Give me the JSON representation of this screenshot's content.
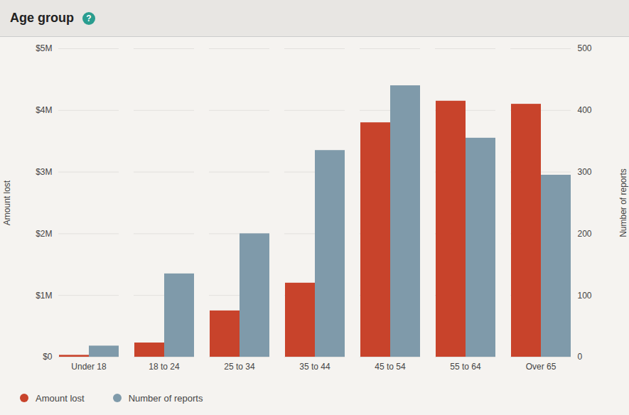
{
  "chart_data": {
    "type": "bar",
    "title": "Age group",
    "annotations": [
      "?"
    ],
    "categories": [
      "Under 18",
      "18 to 24",
      "25 to 34",
      "35 to 44",
      "45 to 54",
      "55 to 64",
      "Over 65"
    ],
    "series": [
      {
        "name": "Amount lost",
        "color": "#c8432b",
        "values": [
          30000,
          230000,
          750000,
          1200000,
          3800000,
          4150000,
          4100000
        ]
      },
      {
        "name": "Number of reports",
        "color": "#7f9aaa",
        "axis": "y2",
        "values": [
          18,
          135,
          200,
          335,
          440,
          355,
          295
        ]
      }
    ],
    "ylabel": "Amount lost",
    "y2label": "Number of reports",
    "ylim": [
      0,
      5000000
    ],
    "yticks": [
      {
        "value": 0,
        "label": "$0"
      },
      {
        "value": 1000000,
        "label": "$1M"
      },
      {
        "value": 2000000,
        "label": "$2M"
      },
      {
        "value": 3000000,
        "label": "$3M"
      },
      {
        "value": 4000000,
        "label": "$4M"
      },
      {
        "value": 5000000,
        "label": "$5M"
      }
    ],
    "y2lim": [
      0,
      500
    ],
    "y2ticks": [
      0,
      100,
      200,
      300,
      400,
      500
    ],
    "grid": true,
    "legend": "bottom"
  }
}
